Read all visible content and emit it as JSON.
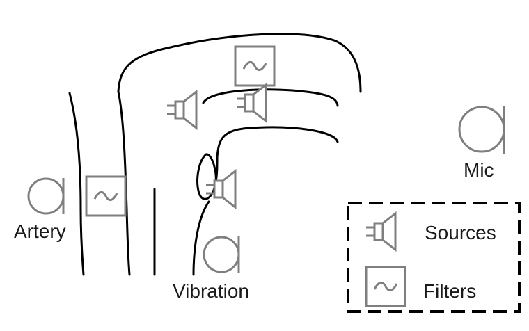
{
  "labels": {
    "artery": "Artery",
    "vibration": "Vibration",
    "mic": "Mic"
  },
  "legend": {
    "sources": "Sources",
    "filters": "Filters"
  },
  "colors": {
    "outline": "#000000",
    "icon": "#7f7f7f",
    "text": "#1a1a1a"
  },
  "icons": {
    "sensor": "letter-a-glyph",
    "source": "speaker-icon",
    "filter": "tilde-filter-icon"
  }
}
